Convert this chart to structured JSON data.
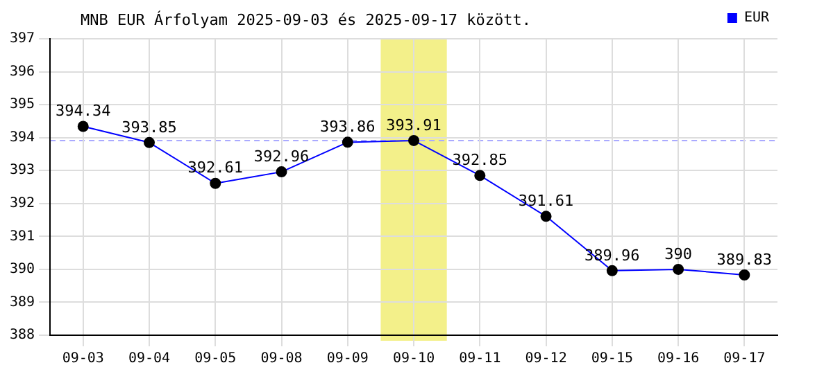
{
  "chart_data": {
    "type": "line",
    "title": "MNB EUR Árfolyam 2025-09-03 és 2025-09-17 között.",
    "categories": [
      "09-03",
      "09-04",
      "09-05",
      "09-08",
      "09-09",
      "09-10",
      "09-11",
      "09-12",
      "09-15",
      "09-16",
      "09-17"
    ],
    "series": [
      {
        "name": "EUR",
        "color": "#0000ff",
        "values": [
          394.34,
          393.85,
          392.61,
          392.96,
          393.86,
          393.91,
          392.85,
          391.61,
          389.96,
          390,
          389.83
        ]
      }
    ],
    "ylim": [
      388,
      397
    ],
    "yticks": [
      388,
      389,
      390,
      391,
      392,
      393,
      394,
      395,
      396,
      397
    ],
    "grid": true,
    "legend": "top right",
    "marker": "circle",
    "line_style": "solid",
    "data_labels": true,
    "ref_lines": [
      {
        "axis": "y",
        "value": 393.91,
        "color": "#aaaaff",
        "line_style": "dashed"
      }
    ],
    "bands": [
      {
        "axis": "x",
        "from": "09-10",
        "to": "09-10",
        "color": "#f3f08a"
      }
    ]
  }
}
